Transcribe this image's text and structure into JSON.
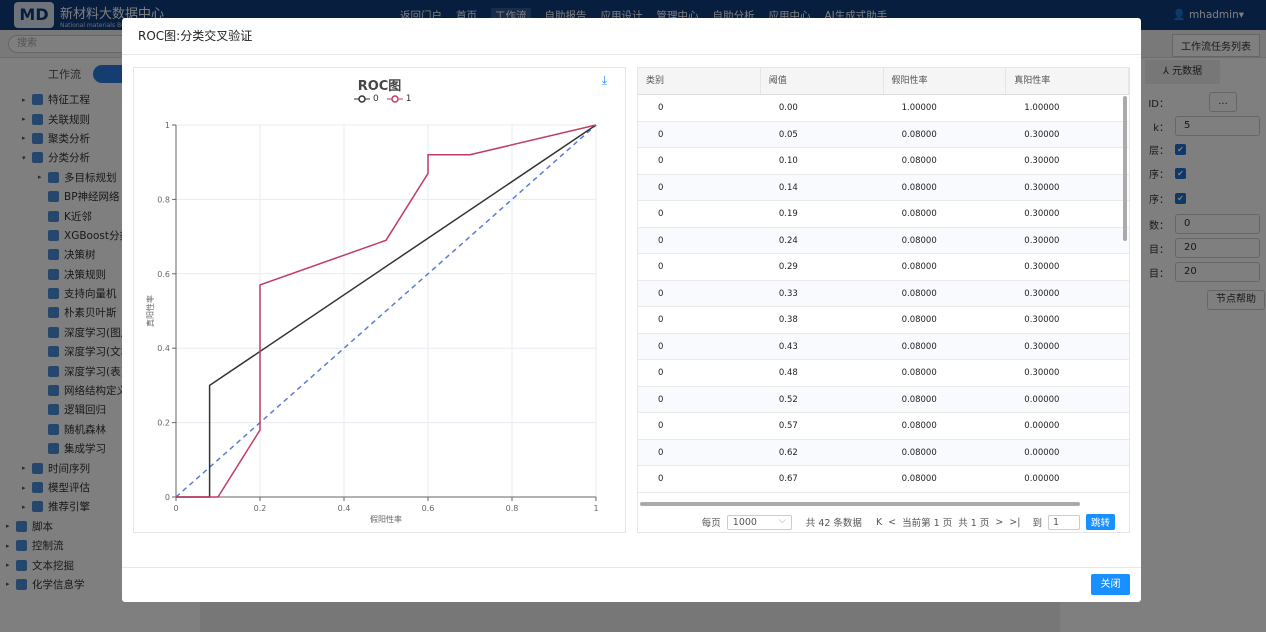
{
  "app": {
    "logo_text": "MD",
    "title": "新材料大数据中心",
    "subtitle": "National materials Big data center"
  },
  "nav": [
    "返回门户",
    "首页",
    "工作流",
    "自助报告",
    "应用设计",
    "管理中心",
    "自助分析",
    "应用中心",
    "AI生成式助手"
  ],
  "nav_active": 2,
  "user": "mhadmin▾",
  "search_placeholder": "搜索",
  "task_list_button": "工作流任务列表",
  "sidebar": {
    "tab": "工作流",
    "items": [
      {
        "label": "特征工程",
        "level": 1,
        "arrow": "▸"
      },
      {
        "label": "关联规则",
        "level": 1,
        "arrow": "▸"
      },
      {
        "label": "聚类分析",
        "level": 1,
        "arrow": "▸"
      },
      {
        "label": "分类分析",
        "level": 1,
        "arrow": "▾"
      },
      {
        "label": "多目标规划",
        "level": 2,
        "arrow": "▸"
      },
      {
        "label": "BP神经网络",
        "level": 2,
        "arrow": ""
      },
      {
        "label": "K近邻",
        "level": 2,
        "arrow": ""
      },
      {
        "label": "XGBoost分类",
        "level": 2,
        "arrow": ""
      },
      {
        "label": "决策树",
        "level": 2,
        "arrow": ""
      },
      {
        "label": "决策规则",
        "level": 2,
        "arrow": ""
      },
      {
        "label": "支持向量机",
        "level": 2,
        "arrow": ""
      },
      {
        "label": "朴素贝叶斯",
        "level": 2,
        "arrow": ""
      },
      {
        "label": "深度学习(图片)",
        "level": 2,
        "arrow": ""
      },
      {
        "label": "深度学习(文本)",
        "level": 2,
        "arrow": ""
      },
      {
        "label": "深度学习(表)",
        "level": 2,
        "arrow": ""
      },
      {
        "label": "网络结构定义",
        "level": 2,
        "arrow": ""
      },
      {
        "label": "逻辑回归",
        "level": 2,
        "arrow": ""
      },
      {
        "label": "随机森林",
        "level": 2,
        "arrow": ""
      },
      {
        "label": "集成学习",
        "level": 2,
        "arrow": ""
      },
      {
        "label": "时间序列",
        "level": 1,
        "arrow": "▸"
      },
      {
        "label": "模型评估",
        "level": 1,
        "arrow": "▸"
      },
      {
        "label": "推荐引擎",
        "level": 1,
        "arrow": "▸"
      },
      {
        "label": "脚本",
        "level": 0,
        "arrow": "▸"
      },
      {
        "label": "控制流",
        "level": 0,
        "arrow": "▸"
      },
      {
        "label": "文本挖掘",
        "level": 0,
        "arrow": "▸"
      },
      {
        "label": "化学信息学",
        "level": 0,
        "arrow": "▸"
      }
    ]
  },
  "right_panel": {
    "tab": "元数据",
    "fields": [
      {
        "label": "ID：",
        "type": "button",
        "value": "..."
      },
      {
        "label": "k：",
        "type": "input",
        "value": "5"
      },
      {
        "label": "层：",
        "type": "checkbox",
        "value": "✔"
      },
      {
        "label": "序：",
        "type": "checkbox",
        "value": "✔"
      },
      {
        "label": "序：",
        "type": "checkbox",
        "value": "✔"
      },
      {
        "label": "数：",
        "type": "input",
        "value": "0"
      },
      {
        "label": "目：",
        "type": "input",
        "value": "20"
      },
      {
        "label": "目：",
        "type": "input",
        "value": "20"
      }
    ],
    "help_button": "节点帮助"
  },
  "modal": {
    "title": "ROC图:分类交叉验证",
    "close_button": "关闭"
  },
  "chart_data": {
    "type": "line",
    "title": "ROC图",
    "xlabel": "假阳性率",
    "ylabel": "真阳性率",
    "xlim": [
      0,
      1
    ],
    "ylim": [
      0,
      1
    ],
    "xticks": [
      "0",
      "0.2",
      "0.4",
      "0.6",
      "0.8",
      "1"
    ],
    "yticks": [
      "0",
      "0.2",
      "0.4",
      "0.6",
      "0.8",
      "1"
    ],
    "grid": true,
    "legend": "top",
    "series": [
      {
        "name": "0",
        "color": "#333333",
        "points": [
          [
            0,
            0
          ],
          [
            0.08,
            0
          ],
          [
            0.08,
            0.3
          ],
          [
            1,
            1
          ]
        ]
      },
      {
        "name": "1",
        "color": "#c23a63",
        "points": [
          [
            0,
            0
          ],
          [
            0.1,
            0
          ],
          [
            0.2,
            0.18
          ],
          [
            0.2,
            0.57
          ],
          [
            0.5,
            0.69
          ],
          [
            0.6,
            0.87
          ],
          [
            0.6,
            0.92
          ],
          [
            0.7,
            0.92
          ],
          [
            1,
            1
          ]
        ]
      }
    ],
    "reference_line": {
      "color": "#5b7bd9",
      "style": "dashed",
      "points": [
        [
          0,
          0
        ],
        [
          1,
          1
        ]
      ]
    }
  },
  "table": {
    "columns": [
      "类别",
      "阈值",
      "假阳性率",
      "真阳性率"
    ],
    "rows": [
      [
        "0",
        "0.00",
        "1.00000",
        "1.00000"
      ],
      [
        "0",
        "0.05",
        "0.08000",
        "0.30000"
      ],
      [
        "0",
        "0.10",
        "0.08000",
        "0.30000"
      ],
      [
        "0",
        "0.14",
        "0.08000",
        "0.30000"
      ],
      [
        "0",
        "0.19",
        "0.08000",
        "0.30000"
      ],
      [
        "0",
        "0.24",
        "0.08000",
        "0.30000"
      ],
      [
        "0",
        "0.29",
        "0.08000",
        "0.30000"
      ],
      [
        "0",
        "0.33",
        "0.08000",
        "0.30000"
      ],
      [
        "0",
        "0.38",
        "0.08000",
        "0.30000"
      ],
      [
        "0",
        "0.43",
        "0.08000",
        "0.30000"
      ],
      [
        "0",
        "0.48",
        "0.08000",
        "0.30000"
      ],
      [
        "0",
        "0.52",
        "0.08000",
        "0.00000"
      ],
      [
        "0",
        "0.57",
        "0.08000",
        "0.00000"
      ],
      [
        "0",
        "0.62",
        "0.08000",
        "0.00000"
      ],
      [
        "0",
        "0.67",
        "0.08000",
        "0.00000"
      ]
    ]
  },
  "pager": {
    "per_page_label": "每页",
    "per_page": "1000",
    "total": "共 42 条数据",
    "first": "K",
    "prev": "<",
    "current": "当前第 1 页",
    "pages": "共 1 页",
    "next": ">",
    "last": ">|",
    "goto_label": "到",
    "goto_value": "1",
    "jump": "跳转"
  }
}
